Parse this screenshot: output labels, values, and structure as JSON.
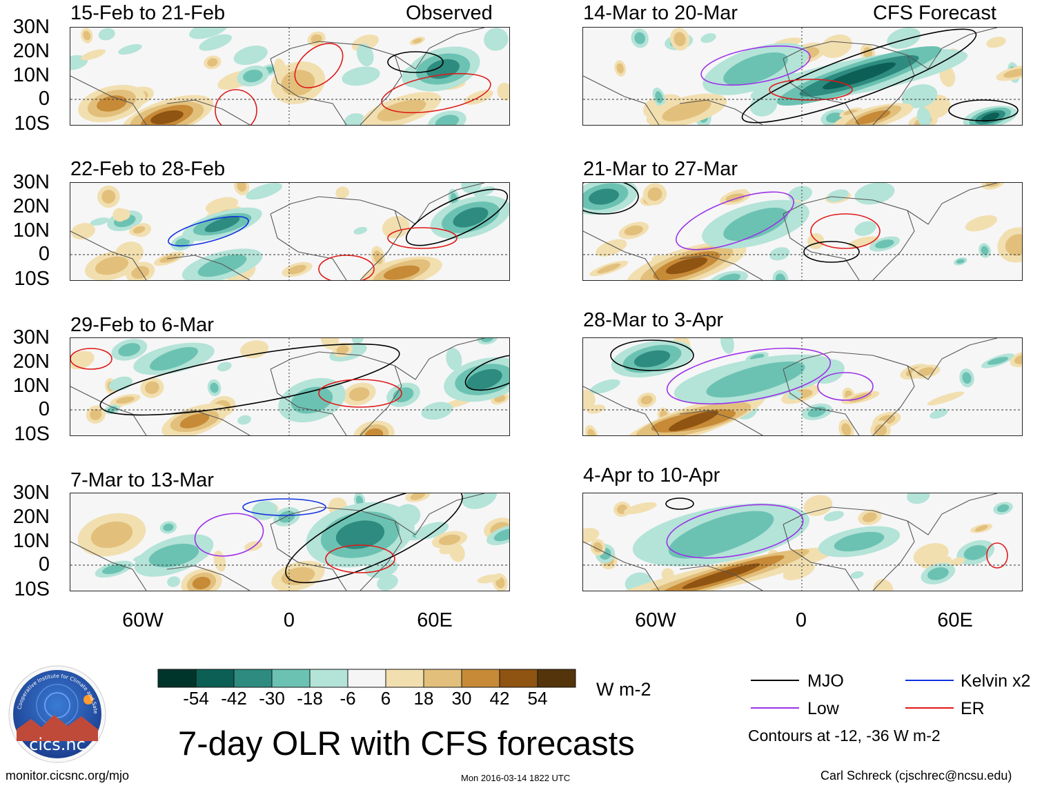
{
  "columns": {
    "left_header": "Observed",
    "right_header": "CFS Forecast"
  },
  "panels_left": [
    {
      "title": "15-Feb to 21-Feb"
    },
    {
      "title": "22-Feb to 28-Feb"
    },
    {
      "title": "29-Feb to 6-Mar"
    },
    {
      "title": "7-Mar to 13-Mar"
    }
  ],
  "panels_right": [
    {
      "title": "14-Mar to 20-Mar"
    },
    {
      "title": "21-Mar to 27-Mar"
    },
    {
      "title": "28-Mar to 3-Apr"
    },
    {
      "title": "4-Apr to 10-Apr"
    }
  ],
  "lat_labels": [
    "30N",
    "20N",
    "10N",
    "0",
    "10S"
  ],
  "lon_labels": [
    "60W",
    "0",
    "60E"
  ],
  "colorbar": {
    "ticks": [
      "-54",
      "-42",
      "-30",
      "-18",
      "-6",
      "6",
      "18",
      "30",
      "42",
      "54"
    ],
    "units": "W m-2",
    "colors": [
      "#00352b",
      "#0c5f55",
      "#2e8b80",
      "#6cc2b2",
      "#b4e3d8",
      "#f5f5f5",
      "#f2dfb0",
      "#e2c07c",
      "#c78a37",
      "#8f5312",
      "#54340a"
    ]
  },
  "legend": {
    "items": [
      {
        "label": "MJO",
        "color": "#000000"
      },
      {
        "label": "Kelvin x2",
        "color": "#1030e0"
      },
      {
        "label": "Low",
        "color": "#9b30e8"
      },
      {
        "label": "ER",
        "color": "#e01818"
      }
    ],
    "note": "Contours at -12, -36 W m-2"
  },
  "main_title": "7-day OLR with CFS forecasts",
  "logo_text": "cics.nc",
  "logo_ring_text": "Cooperative Institute for Climate and Satellites",
  "footer": {
    "url": "monitor.cicsnc.org/mjo",
    "timestamp": "Mon 2016-03-14 1822 UTC",
    "author": "Carl Schreck (cjschrec@ncsu.edu)"
  }
}
